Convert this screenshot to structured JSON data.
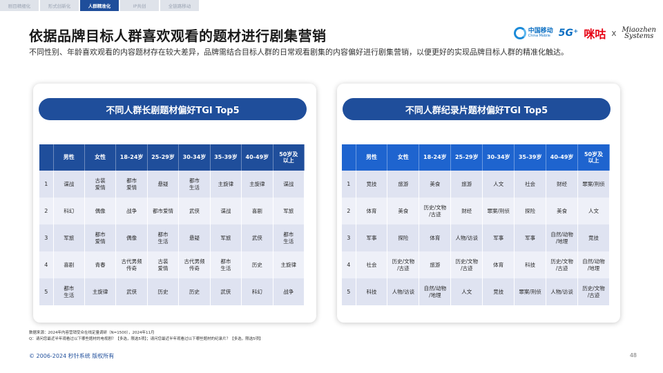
{
  "tabs": [
    {
      "label": "剧目精细化",
      "active": false
    },
    {
      "label": "形式创新化",
      "active": false
    },
    {
      "label": "人群精准化",
      "active": true
    },
    {
      "label": "IP共创",
      "active": false
    },
    {
      "label": "全链路移动",
      "active": false
    }
  ],
  "title": "依据品牌目标人群喜欢观看的题材进行剧集营销",
  "subtitle": "不同性别、年龄喜欢观看的内容题材存在较大差异，品牌需结合目标人群的日常观看剧集的内容偏好进行剧集营销，以便更好的实现品牌目标人群的精准化触达。",
  "logos": {
    "china_mobile_cn": "中国移动",
    "china_mobile_en": "China Mobile",
    "fiveg": "5G⁺",
    "migu": "咪咕",
    "cross": "x",
    "miaozhen_1": "Miaozhen",
    "miaozhen_2": "Systems"
  },
  "left_table": {
    "title": "不同人群长剧题材偏好TGI Top5",
    "headers": [
      "",
      "男性",
      "女性",
      "18-24岁",
      "25-29岁",
      "30-34岁",
      "35-39岁",
      "40-49岁",
      "50岁及以上"
    ],
    "rows": [
      [
        "1",
        "谍战",
        "古装\n爱情",
        "都市\n爱情",
        "悬疑",
        "都市\n生活",
        "主旋律",
        "主旋律",
        "谍战"
      ],
      [
        "2",
        "科幻",
        "偶像",
        "战争",
        "都市爱情",
        "武侠",
        "谍战",
        "喜剧",
        "军旅"
      ],
      [
        "3",
        "军旅",
        "都市\n爱情",
        "偶像",
        "都市\n生活",
        "悬疑",
        "军旅",
        "武侠",
        "都市\n生活"
      ],
      [
        "4",
        "喜剧",
        "青春",
        "古代男频\n传奇",
        "古装\n爱情",
        "古代男频\n传奇",
        "都市\n生活",
        "历史",
        "主旋律"
      ],
      [
        "5",
        "都市\n生活",
        "主旋律",
        "武侠",
        "历史",
        "历史",
        "武侠",
        "科幻",
        "战争"
      ]
    ]
  },
  "right_table": {
    "title": "不同人群纪录片题材偏好TGI Top5",
    "headers": [
      "",
      "男性",
      "女性",
      "18-24岁",
      "25-29岁",
      "30-34岁",
      "35-39岁",
      "40-49岁",
      "50岁及以上"
    ],
    "rows": [
      [
        "1",
        "竞技",
        "旅游",
        "美食",
        "旅游",
        "人文",
        "社会",
        "财经",
        "罪案/刑侦"
      ],
      [
        "2",
        "体育",
        "美食",
        "历史/文物\n/古迹",
        "财经",
        "罪案/刑侦",
        "探险",
        "美食",
        "人文"
      ],
      [
        "3",
        "军事",
        "探险",
        "体育",
        "人物/访谈",
        "军事",
        "军事",
        "自然/动物\n/地理",
        "竞技"
      ],
      [
        "4",
        "社会",
        "历史/文物\n/古迹",
        "旅游",
        "历史/文物\n/古迹",
        "体育",
        "科技",
        "历史/文物\n/古迹",
        "自然/动物\n/地理"
      ],
      [
        "5",
        "科技",
        "人物/访谈",
        "自然/动物\n/地理",
        "人文",
        "竞技",
        "罪案/刑侦",
        "人物/访谈",
        "历史/文物\n/古迹"
      ]
    ]
  },
  "notes": {
    "source": "数据来源：2024年内容营销受众在线定量调研（N=1500），2024年11月",
    "question": "Q：请问您最近半年观看过以下哪些题材的电视剧？【多选，限选5项】；请问您最近半年观看过以下哪些题材的纪录片？【多选，限选5项】"
  },
  "footer": "© 2006-2024 秒针系统 版权所有",
  "page_number": "48",
  "colors": {
    "brand_blue": "#1f4e9b",
    "header_blue_right": "#1e64cf",
    "row_odd": "#dfe3f1",
    "row_even": "#eef0f8"
  }
}
